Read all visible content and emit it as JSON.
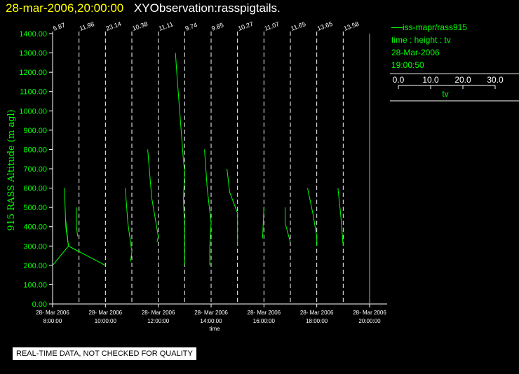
{
  "title": {
    "date": "28-mar-2006,20:00:00",
    "text": "XYObservation:rasspigtails."
  },
  "legend": {
    "series_name": "iss-mapr/rass915",
    "mapping": "time : height : tv",
    "date": "28-Mar-2006",
    "time": "19:00:50",
    "scale_ticks": [
      "0.0",
      "10.0",
      "20.0",
      "30.0"
    ],
    "scale_label": "tv"
  },
  "qc_notice": "REAL-TIME DATA, NOT CHECKED FOR QUALITY",
  "colors": {
    "axis": "#ffffff",
    "series": "#00ff00",
    "label": "#00ff00",
    "title_date": "#ffff00"
  },
  "chart_data": {
    "type": "line",
    "ylabel": "915 RASS Altitude (m agl)",
    "xlabel": "time",
    "ylim": [
      0,
      1400
    ],
    "xlim_hours": [
      8.0,
      20.0
    ],
    "y_ticks": [
      "0.00",
      "100.00",
      "200.00",
      "300.00",
      "400.00",
      "500.00",
      "600.00",
      "700.00",
      "800.00",
      "900.00",
      "1000.00",
      "1100.00",
      "1200.00",
      "1300.00",
      "1400.00"
    ],
    "x_ticks": [
      {
        "hour": 8,
        "date": "28- Mar 2006",
        "time": "8:00:00"
      },
      {
        "hour": 10,
        "date": "28- Mar 2006",
        "time": "10:00:00"
      },
      {
        "hour": 12,
        "date": "28- Mar 2006",
        "time": "12:00:00"
      },
      {
        "hour": 14,
        "date": "28- Mar 2006",
        "time": "14:00:00"
      },
      {
        "hour": 16,
        "date": "28- Mar 2006",
        "time": "16:00:00"
      },
      {
        "hour": 18,
        "date": "28- Mar 2006",
        "time": "18:00:00"
      },
      {
        "hour": 20,
        "date": "28- Mar 2006",
        "time": "20:00:00"
      }
    ],
    "profiles": [
      {
        "hour": 8.0,
        "label": "5.87"
      },
      {
        "hour": 9.0,
        "label": "11.98"
      },
      {
        "hour": 10.0,
        "label": "23.14"
      },
      {
        "hour": 11.0,
        "label": "10.38"
      },
      {
        "hour": 12.0,
        "label": "11.11"
      },
      {
        "hour": 13.0,
        "label": "9.74"
      },
      {
        "hour": 14.0,
        "label": "9.85"
      },
      {
        "hour": 15.0,
        "label": "10.27"
      },
      {
        "hour": 16.0,
        "label": "11.07"
      },
      {
        "hour": 17.0,
        "label": "11.65"
      },
      {
        "hour": 18.0,
        "label": "13.65"
      },
      {
        "hour": 19.0,
        "label": "13.58"
      }
    ],
    "series": [
      {
        "name": "iss-mapr/rass915",
        "segments": [
          [
            [
              8.0,
              200
            ],
            [
              8.6,
              300
            ],
            [
              10.0,
              200
            ]
          ],
          [
            [
              8.45,
              600
            ],
            [
              8.5,
              400
            ],
            [
              8.6,
              300
            ],
            [
              9.0,
              270
            ]
          ],
          [
            [
              8.6,
              300
            ],
            [
              8.5,
              430
            ]
          ],
          [
            [
              8.9,
              500
            ],
            [
              8.9,
              400
            ],
            [
              8.95,
              350
            ]
          ],
          [
            [
              10.75,
              600
            ],
            [
              10.85,
              420
            ],
            [
              11.0,
              270
            ],
            [
              10.95,
              220
            ]
          ],
          [
            [
              11.6,
              800
            ],
            [
              11.75,
              550
            ],
            [
              12.0,
              350
            ],
            [
              11.95,
              320
            ]
          ],
          [
            [
              12.65,
              1300
            ],
            [
              12.7,
              1200
            ],
            [
              12.95,
              750
            ],
            [
              13.0,
              680
            ],
            [
              12.95,
              540
            ],
            [
              13.0,
              400
            ],
            [
              13.0,
              200
            ]
          ],
          [
            [
              13.75,
              800
            ],
            [
              13.85,
              600
            ],
            [
              14.0,
              420
            ],
            [
              13.95,
              300
            ],
            [
              13.95,
              200
            ]
          ],
          [
            [
              14.6,
              700
            ],
            [
              14.7,
              580
            ],
            [
              15.0,
              470
            ],
            [
              15.0,
              300
            ]
          ],
          [
            [
              16.0,
              500
            ],
            [
              15.95,
              340
            ]
          ],
          [
            [
              16.8,
              500
            ],
            [
              16.8,
              420
            ],
            [
              17.0,
              320
            ]
          ],
          [
            [
              17.65,
              600
            ],
            [
              17.85,
              470
            ],
            [
              18.0,
              350
            ],
            [
              18.0,
              300
            ]
          ],
          [
            [
              18.8,
              600
            ],
            [
              18.9,
              470
            ],
            [
              19.0,
              300
            ]
          ]
        ]
      }
    ]
  }
}
